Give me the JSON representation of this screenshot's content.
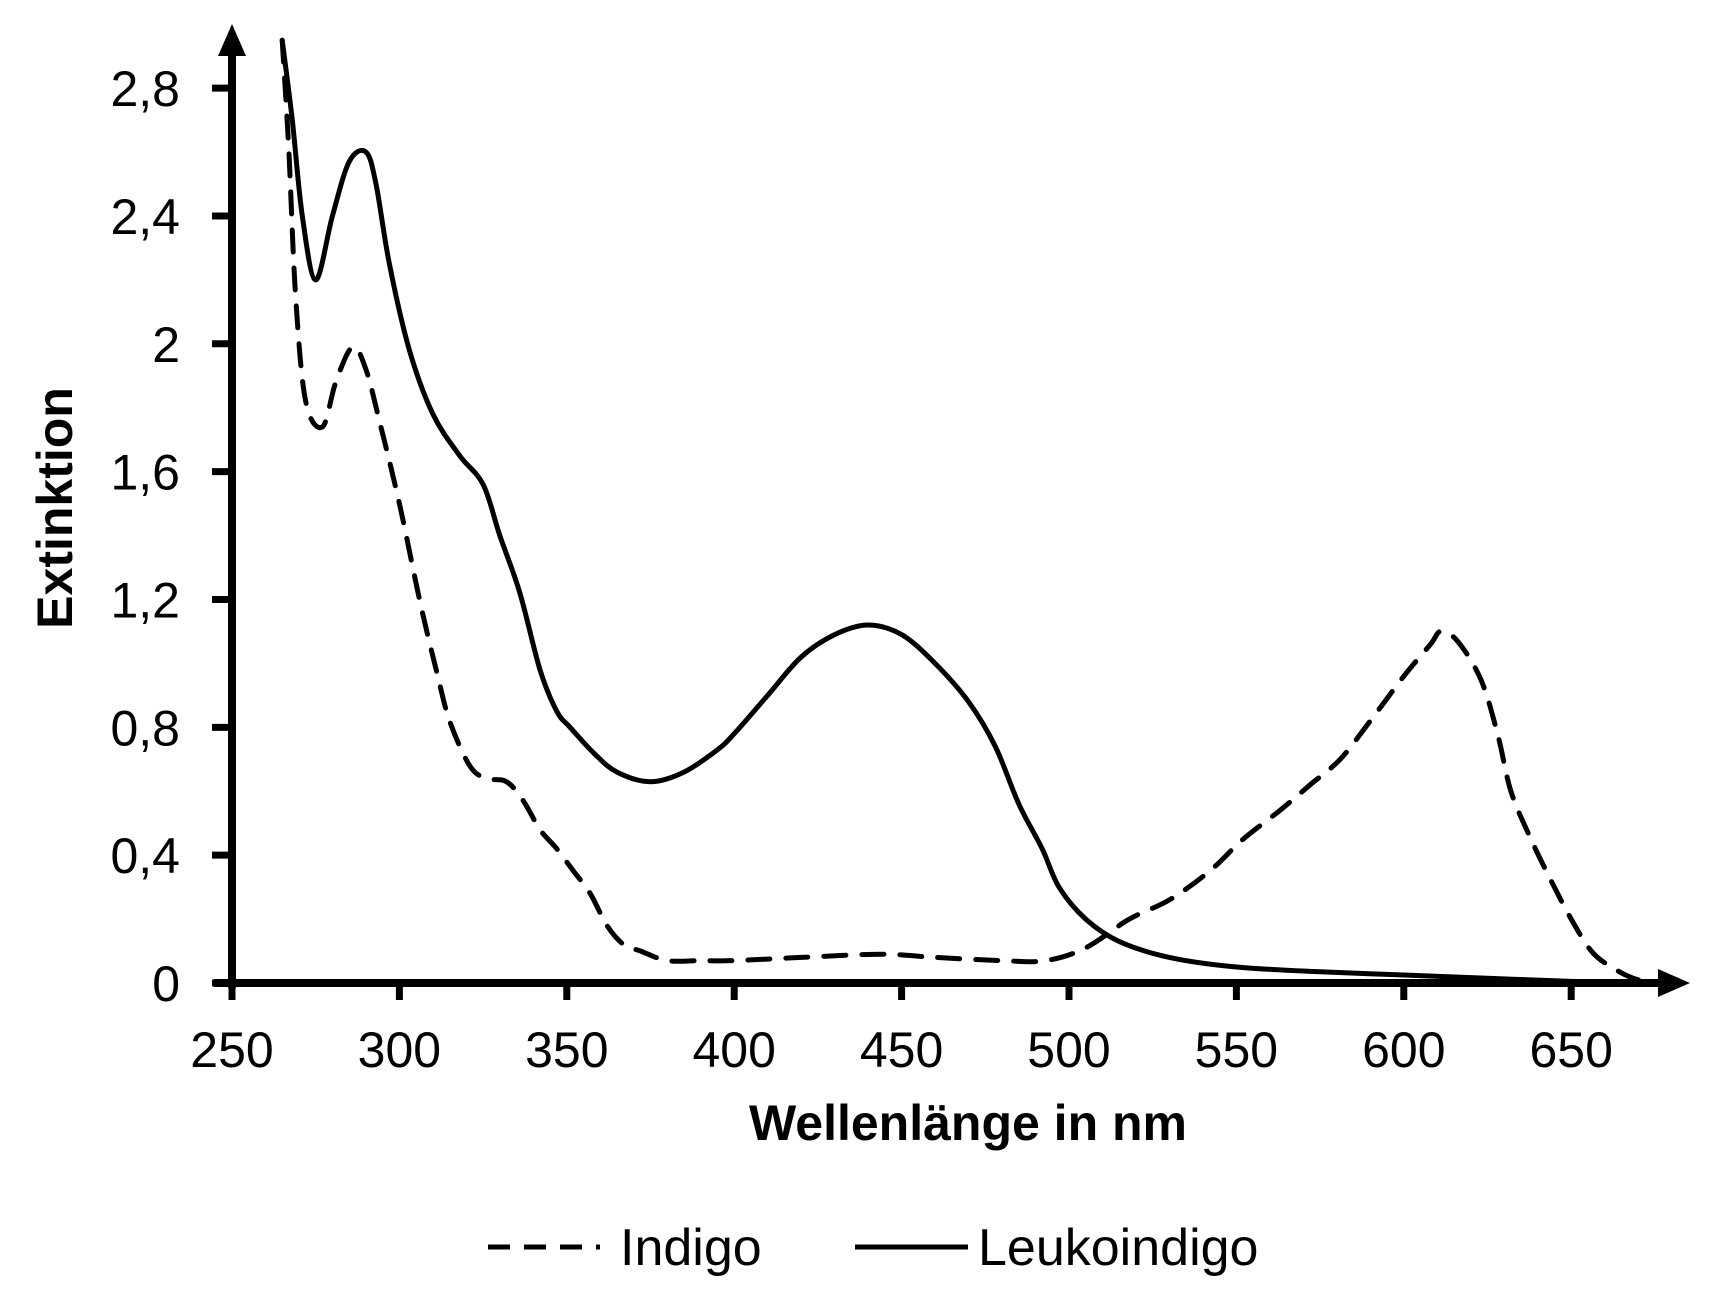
{
  "chart_data": {
    "type": "line",
    "title": "",
    "xlabel": "Wellenlänge in nm",
    "ylabel": "Extinktion",
    "xlim": [
      250,
      685
    ],
    "ylim": [
      0,
      2.95
    ],
    "grid": false,
    "legend_position": "bottom",
    "x_ticks": [
      250,
      300,
      350,
      400,
      450,
      500,
      550,
      600,
      650
    ],
    "x_tick_labels": [
      "250",
      "300",
      "350",
      "400",
      "450",
      "500",
      "550",
      "600",
      "650"
    ],
    "y_ticks": [
      0,
      0.4,
      0.8,
      1.2,
      1.6,
      2.0,
      2.4,
      2.8
    ],
    "y_tick_labels": [
      "0",
      "0,4",
      "0,8",
      "1,2",
      "1,6",
      "2",
      "2,4",
      "2,8"
    ],
    "series": [
      {
        "name": "Indigo",
        "style": "dashed",
        "color": "#000000",
        "x": [
          265,
          267,
          269,
          272,
          277,
          281,
          286,
          290,
          294,
          300,
          306,
          311,
          315,
          321,
          326,
          332,
          337,
          342,
          347,
          352,
          357,
          362,
          367,
          372,
          380,
          390,
          400,
          420,
          444,
          460,
          480,
          493,
          505,
          518,
          530,
          542,
          552,
          563,
          572,
          581,
          590,
          600,
          608,
          611,
          616,
          623,
          628,
          632,
          638,
          644,
          650,
          656,
          662,
          670,
          680
        ],
        "y": [
          2.95,
          2.6,
          2.15,
          1.82,
          1.74,
          1.88,
          1.99,
          1.92,
          1.76,
          1.5,
          1.2,
          0.98,
          0.82,
          0.68,
          0.64,
          0.63,
          0.57,
          0.48,
          0.42,
          0.35,
          0.28,
          0.18,
          0.12,
          0.1,
          0.07,
          0.07,
          0.07,
          0.08,
          0.09,
          0.08,
          0.07,
          0.07,
          0.11,
          0.2,
          0.26,
          0.35,
          0.45,
          0.54,
          0.62,
          0.7,
          0.82,
          0.96,
          1.06,
          1.1,
          1.07,
          0.95,
          0.78,
          0.6,
          0.45,
          0.32,
          0.2,
          0.1,
          0.05,
          0.01,
          0.0
        ]
      },
      {
        "name": "Leukoindigo",
        "style": "solid",
        "color": "#000000",
        "x": [
          265,
          268,
          271,
          275,
          280,
          285,
          290,
          293,
          297,
          303,
          310,
          318,
          325,
          330,
          336,
          342,
          347,
          351,
          358,
          365,
          375,
          385,
          395,
          400,
          410,
          420,
          430,
          440,
          450,
          460,
          470,
          478,
          485,
          492,
          497,
          505,
          515,
          530,
          550,
          575,
          600,
          625,
          650,
          673
        ],
        "y": [
          2.95,
          2.7,
          2.4,
          2.2,
          2.4,
          2.57,
          2.6,
          2.5,
          2.25,
          1.98,
          1.78,
          1.65,
          1.56,
          1.4,
          1.22,
          0.98,
          0.85,
          0.8,
          0.72,
          0.66,
          0.63,
          0.66,
          0.73,
          0.78,
          0.9,
          1.02,
          1.09,
          1.12,
          1.09,
          1.0,
          0.88,
          0.74,
          0.56,
          0.42,
          0.3,
          0.2,
          0.13,
          0.08,
          0.05,
          0.035,
          0.025,
          0.015,
          0.005,
          0.0
        ]
      }
    ]
  },
  "legend": {
    "items": [
      {
        "label": "Indigo",
        "style": "dashed"
      },
      {
        "label": "Leukoindigo",
        "style": "solid"
      }
    ]
  }
}
